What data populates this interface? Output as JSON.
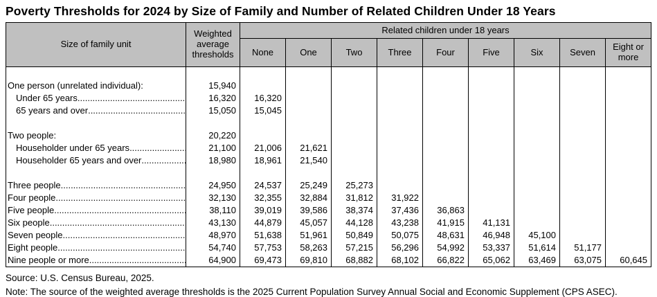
{
  "title": "Poverty Thresholds for 2024 by Size of Family and Number of Related Children Under 18 Years",
  "chart_data": {
    "type": "table",
    "title": "Poverty Thresholds for 2024 by Size of Family and Number of Related Children Under 18 Years",
    "corner_header": "Size of family unit",
    "weighted_header": "Weighted average thresholds",
    "group_header": "Related children under 18 years",
    "child_columns": [
      "None",
      "One",
      "Two",
      "Three",
      "Four",
      "Five",
      "Six",
      "Seven",
      "Eight or more"
    ],
    "rows": [
      {
        "label": "",
        "indent": 0,
        "leader": false,
        "values": [
          "",
          "",
          "",
          "",
          "",
          "",
          "",
          "",
          "",
          ""
        ]
      },
      {
        "label": "One person (unrelated individual):",
        "indent": 0,
        "leader": false,
        "values": [
          "15,940",
          "",
          "",
          "",
          "",
          "",
          "",
          "",
          "",
          ""
        ]
      },
      {
        "label": "Under 65 years",
        "indent": 1,
        "leader": true,
        "values": [
          "16,320",
          "16,320",
          "",
          "",
          "",
          "",
          "",
          "",
          "",
          ""
        ]
      },
      {
        "label": "65 years and over",
        "indent": 1,
        "leader": true,
        "values": [
          "15,050",
          "15,045",
          "",
          "",
          "",
          "",
          "",
          "",
          "",
          ""
        ]
      },
      {
        "label": "",
        "indent": 0,
        "leader": false,
        "values": [
          "",
          "",
          "",
          "",
          "",
          "",
          "",
          "",
          "",
          ""
        ]
      },
      {
        "label": "Two people:",
        "indent": 0,
        "leader": false,
        "values": [
          "20,220",
          "",
          "",
          "",
          "",
          "",
          "",
          "",
          "",
          ""
        ]
      },
      {
        "label": "Householder under 65 years",
        "indent": 1,
        "leader": true,
        "values": [
          "21,100",
          "21,006",
          "21,621",
          "",
          "",
          "",
          "",
          "",
          "",
          ""
        ]
      },
      {
        "label": "Householder 65 years and over",
        "indent": 1,
        "leader": true,
        "values": [
          "18,980",
          "18,961",
          "21,540",
          "",
          "",
          "",
          "",
          "",
          "",
          ""
        ]
      },
      {
        "label": "",
        "indent": 0,
        "leader": false,
        "values": [
          "",
          "",
          "",
          "",
          "",
          "",
          "",
          "",
          "",
          ""
        ]
      },
      {
        "label": "Three people",
        "indent": 0,
        "leader": true,
        "values": [
          "24,950",
          "24,537",
          "25,249",
          "25,273",
          "",
          "",
          "",
          "",
          "",
          ""
        ]
      },
      {
        "label": "Four people",
        "indent": 0,
        "leader": true,
        "values": [
          "32,130",
          "32,355",
          "32,884",
          "31,812",
          "31,922",
          "",
          "",
          "",
          "",
          ""
        ]
      },
      {
        "label": "Five people",
        "indent": 0,
        "leader": true,
        "values": [
          "38,110",
          "39,019",
          "39,586",
          "38,374",
          "37,436",
          "36,863",
          "",
          "",
          "",
          ""
        ]
      },
      {
        "label": "Six people",
        "indent": 0,
        "leader": true,
        "values": [
          "43,130",
          "44,879",
          "45,057",
          "44,128",
          "43,238",
          "41,915",
          "41,131",
          "",
          "",
          ""
        ]
      },
      {
        "label": "Seven people",
        "indent": 0,
        "leader": true,
        "values": [
          "48,970",
          "51,638",
          "51,961",
          "50,849",
          "50,075",
          "48,631",
          "46,948",
          "45,100",
          "",
          ""
        ]
      },
      {
        "label": "Eight people",
        "indent": 0,
        "leader": true,
        "values": [
          "54,740",
          "57,753",
          "58,263",
          "57,215",
          "56,296",
          "54,992",
          "53,337",
          "51,614",
          "51,177",
          ""
        ]
      },
      {
        "label": "Nine people or more",
        "indent": 0,
        "leader": true,
        "values": [
          "64,900",
          "69,473",
          "69,810",
          "68,882",
          "68,102",
          "66,822",
          "65,062",
          "63,469",
          "63,075",
          "60,645"
        ]
      }
    ]
  },
  "colors": {
    "header_bg": "#c0c0c0",
    "border": "#000000",
    "text": "#000000",
    "page_bg": "#ffffff"
  },
  "footer": {
    "source": "Source: U.S. Census Bureau, 2025.",
    "note": "Note: The source of the weighted average thresholds is the 2025 Current Population Survey Annual Social and Economic Supplement (CPS ASEC)."
  }
}
